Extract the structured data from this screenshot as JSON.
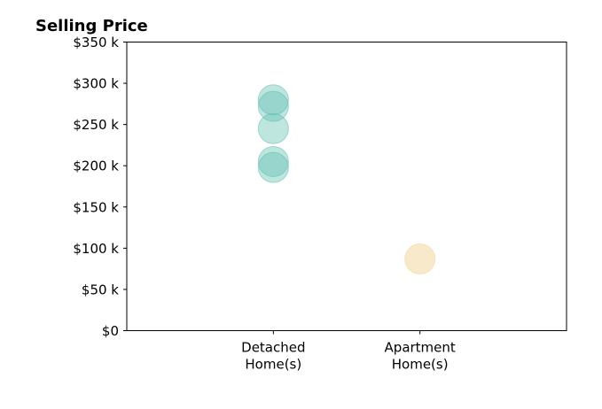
{
  "chart_data": {
    "type": "scatter",
    "title": "Selling Price",
    "xlabel": "",
    "ylabel": "",
    "ylim": [
      0,
      350000
    ],
    "yticks": [
      0,
      50000,
      100000,
      150000,
      200000,
      250000,
      300000,
      350000
    ],
    "ytick_labels": [
      "$0",
      "$50 k",
      "$100 k",
      "$150 k",
      "$200 k",
      "$250 k",
      "$300 k",
      "$350 k"
    ],
    "categories": [
      {
        "lines": [
          "Detached",
          "Home(s)"
        ],
        "position": 1
      },
      {
        "lines": [
          "Apartment",
          "Home(s)"
        ],
        "position": 2
      }
    ],
    "xlim": [
      0,
      3
    ],
    "grid": false,
    "series": [
      {
        "category": 1,
        "color": "#5fbfae",
        "opacity": 0.4,
        "values": [
          280000,
          272000,
          245000,
          205000,
          198000
        ]
      },
      {
        "category": 2,
        "color": "#f3dba8",
        "opacity": 0.6,
        "values": [
          87000
        ]
      }
    ]
  }
}
